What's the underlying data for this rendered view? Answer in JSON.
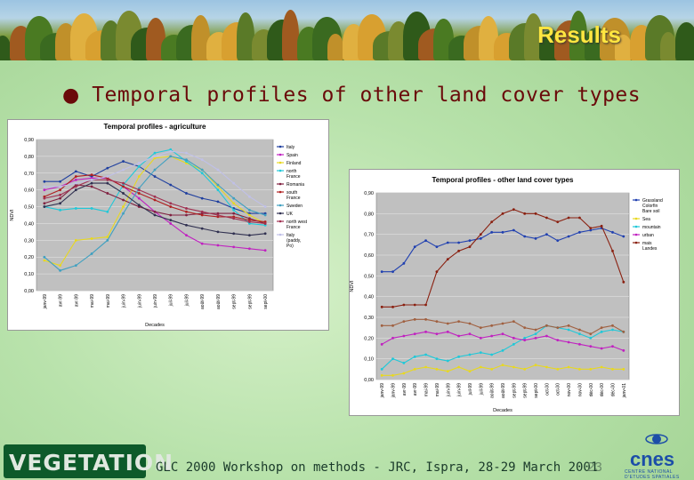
{
  "slide": {
    "title": "Results",
    "bullet_icon": "bullet-m-icon",
    "heading": "Temporal profiles of other land cover types",
    "footer": "GLC 2000 Workshop on methods - JRC, Ispra, 28-29 March 2001",
    "page_number": "23",
    "logo_left": "VEGETATION",
    "logo_right": "cnes",
    "logo_right_sub": "CENTRE NATIONAL D'ETUDES SPATIALES"
  },
  "chart_data": [
    {
      "type": "line",
      "title": "Temporal profiles - agriculture",
      "xlabel": "Decades",
      "ylabel": "NDVI",
      "ylim": [
        0,
        0.9
      ],
      "yticks": [
        "0,00",
        "0,10",
        "0,20",
        "0,30",
        "0,40",
        "0,50",
        "0,60",
        "0,70",
        "0,80",
        "0,90"
      ],
      "categories": [
        "janv-99",
        "avr-99",
        "avr-99",
        "mai-99",
        "mai-99",
        "juin-99",
        "juin-99",
        "juin-99",
        "juil-99",
        "juil-99",
        "août-99",
        "août-99",
        "sept-99",
        "sept-99",
        "sept-00"
      ],
      "legend_placement": "right",
      "grid": true,
      "series": [
        {
          "name": "Italy",
          "color": "#1f3f9f",
          "values": [
            0.65,
            0.65,
            0.71,
            0.68,
            0.73,
            0.77,
            0.74,
            0.68,
            0.63,
            0.58,
            0.55,
            0.53,
            0.49,
            0.46,
            0.46
          ]
        },
        {
          "name": "Spain",
          "color": "#c020c0",
          "values": [
            0.6,
            0.62,
            0.66,
            0.67,
            0.67,
            0.62,
            0.55,
            0.47,
            0.4,
            0.33,
            0.28,
            0.27,
            0.26,
            0.25,
            0.24
          ]
        },
        {
          "name": "Finland",
          "color": "#e8d820",
          "values": [
            0.18,
            0.15,
            0.3,
            0.31,
            0.32,
            0.5,
            0.68,
            0.79,
            0.8,
            0.76,
            0.72,
            0.62,
            0.52,
            0.45,
            0.4
          ]
        },
        {
          "name": "north France",
          "color": "#20c8d8",
          "values": [
            0.5,
            0.48,
            0.49,
            0.49,
            0.47,
            0.63,
            0.74,
            0.82,
            0.84,
            0.77,
            0.7,
            0.6,
            0.48,
            0.4,
            0.39
          ]
        },
        {
          "name": "Romania",
          "color": "#802040",
          "values": [
            0.52,
            0.55,
            0.63,
            0.62,
            0.58,
            0.54,
            0.5,
            0.47,
            0.45,
            0.45,
            0.46,
            0.46,
            0.46,
            0.43,
            0.4
          ]
        },
        {
          "name": "south France",
          "color": "#b02020",
          "values": [
            0.56,
            0.6,
            0.68,
            0.69,
            0.67,
            0.62,
            0.58,
            0.54,
            0.5,
            0.47,
            0.45,
            0.44,
            0.44,
            0.42,
            0.41
          ]
        },
        {
          "name": "Sweden",
          "color": "#40a0c0",
          "values": [
            0.2,
            0.12,
            0.15,
            0.22,
            0.3,
            0.46,
            0.61,
            0.72,
            0.8,
            0.78,
            0.72,
            0.63,
            0.55,
            0.48,
            0.45
          ]
        },
        {
          "name": "UK",
          "color": "#303050",
          "values": [
            0.5,
            0.52,
            0.6,
            0.64,
            0.64,
            0.58,
            0.51,
            0.45,
            0.42,
            0.39,
            0.37,
            0.35,
            0.34,
            0.33,
            0.34
          ]
        },
        {
          "name": "north west France",
          "color": "#a03050",
          "values": [
            0.55,
            0.57,
            0.62,
            0.66,
            0.66,
            0.64,
            0.6,
            0.56,
            0.52,
            0.49,
            0.47,
            0.45,
            0.43,
            0.41,
            0.4
          ]
        },
        {
          "name": "Italy (paddy, Po)",
          "color": "#c0c0e8",
          "values": [
            0.62,
            0.62,
            0.64,
            0.66,
            0.68,
            0.72,
            0.76,
            0.8,
            0.83,
            0.82,
            0.78,
            0.72,
            0.64,
            0.56,
            0.5
          ]
        }
      ]
    },
    {
      "type": "line",
      "title": "Temporal profiles - other land cover types",
      "xlabel": "Decades",
      "ylabel": "NDVI",
      "ylim": [
        0,
        0.9
      ],
      "yticks": [
        "0,00",
        "0,10",
        "0,20",
        "0,30",
        "0,40",
        "0,50",
        "0,60",
        "0,70",
        "0,80",
        "0,90"
      ],
      "categories": [
        "janv-99",
        "janv-99",
        "avr-99",
        "avr-99",
        "mai-99",
        "mai-99",
        "juin-99",
        "juin-99",
        "juil-99",
        "juil-99",
        "août-99",
        "août-99",
        "sept-99",
        "sept-99",
        "sept-00",
        "oct-00",
        "oct-00",
        "nov-00",
        "nov-00",
        "déc-00",
        "déc-00",
        "déc-00",
        "janv-01"
      ],
      "legend_placement": "right",
      "grid": true,
      "series": [
        {
          "name": "Grassland Colorfin Bare soil",
          "color": "#2040b0",
          "values": [
            0.52,
            0.52,
            0.56,
            0.64,
            0.67,
            0.64,
            0.66,
            0.66,
            0.67,
            0.68,
            0.71,
            0.71,
            0.72,
            0.69,
            0.68,
            0.7,
            0.67,
            0.69,
            0.71,
            0.72,
            0.73,
            0.71,
            0.69
          ]
        },
        {
          "name": "Sea",
          "color": "#e8d820",
          "values": [
            0.02,
            0.02,
            0.03,
            0.05,
            0.06,
            0.05,
            0.04,
            0.06,
            0.04,
            0.06,
            0.05,
            0.07,
            0.06,
            0.05,
            0.07,
            0.06,
            0.05,
            0.06,
            0.05,
            0.05,
            0.06,
            0.05,
            0.05
          ]
        },
        {
          "name": "mountain",
          "color": "#20c8d8",
          "values": [
            0.05,
            0.1,
            0.08,
            0.11,
            0.12,
            0.1,
            0.09,
            0.11,
            0.12,
            0.13,
            0.12,
            0.14,
            0.17,
            0.2,
            0.22,
            0.26,
            0.25,
            0.24,
            0.22,
            0.2,
            0.23,
            0.24,
            0.23
          ]
        },
        {
          "name": "urban",
          "color": "#c020c0",
          "values": [
            0.17,
            0.2,
            0.21,
            0.22,
            0.23,
            0.22,
            0.23,
            0.21,
            0.22,
            0.2,
            0.21,
            0.22,
            0.2,
            0.19,
            0.2,
            0.21,
            0.19,
            0.18,
            0.17,
            0.16,
            0.15,
            0.16,
            0.14
          ]
        },
        {
          "name": "mais Landes",
          "color": "#8a2010",
          "values": [
            0.35,
            0.35,
            0.36,
            0.36,
            0.36,
            0.52,
            0.58,
            0.62,
            0.64,
            0.7,
            0.76,
            0.8,
            0.82,
            0.8,
            0.8,
            0.78,
            0.76,
            0.78,
            0.78,
            0.73,
            0.74,
            0.62,
            0.47
          ]
        },
        {
          "name": "",
          "color": "#a06040",
          "values": [
            0.26,
            0.26,
            0.28,
            0.29,
            0.29,
            0.28,
            0.27,
            0.28,
            0.27,
            0.25,
            0.26,
            0.27,
            0.28,
            0.25,
            0.24,
            0.26,
            0.25,
            0.26,
            0.24,
            0.22,
            0.25,
            0.26,
            0.23
          ]
        }
      ]
    }
  ]
}
